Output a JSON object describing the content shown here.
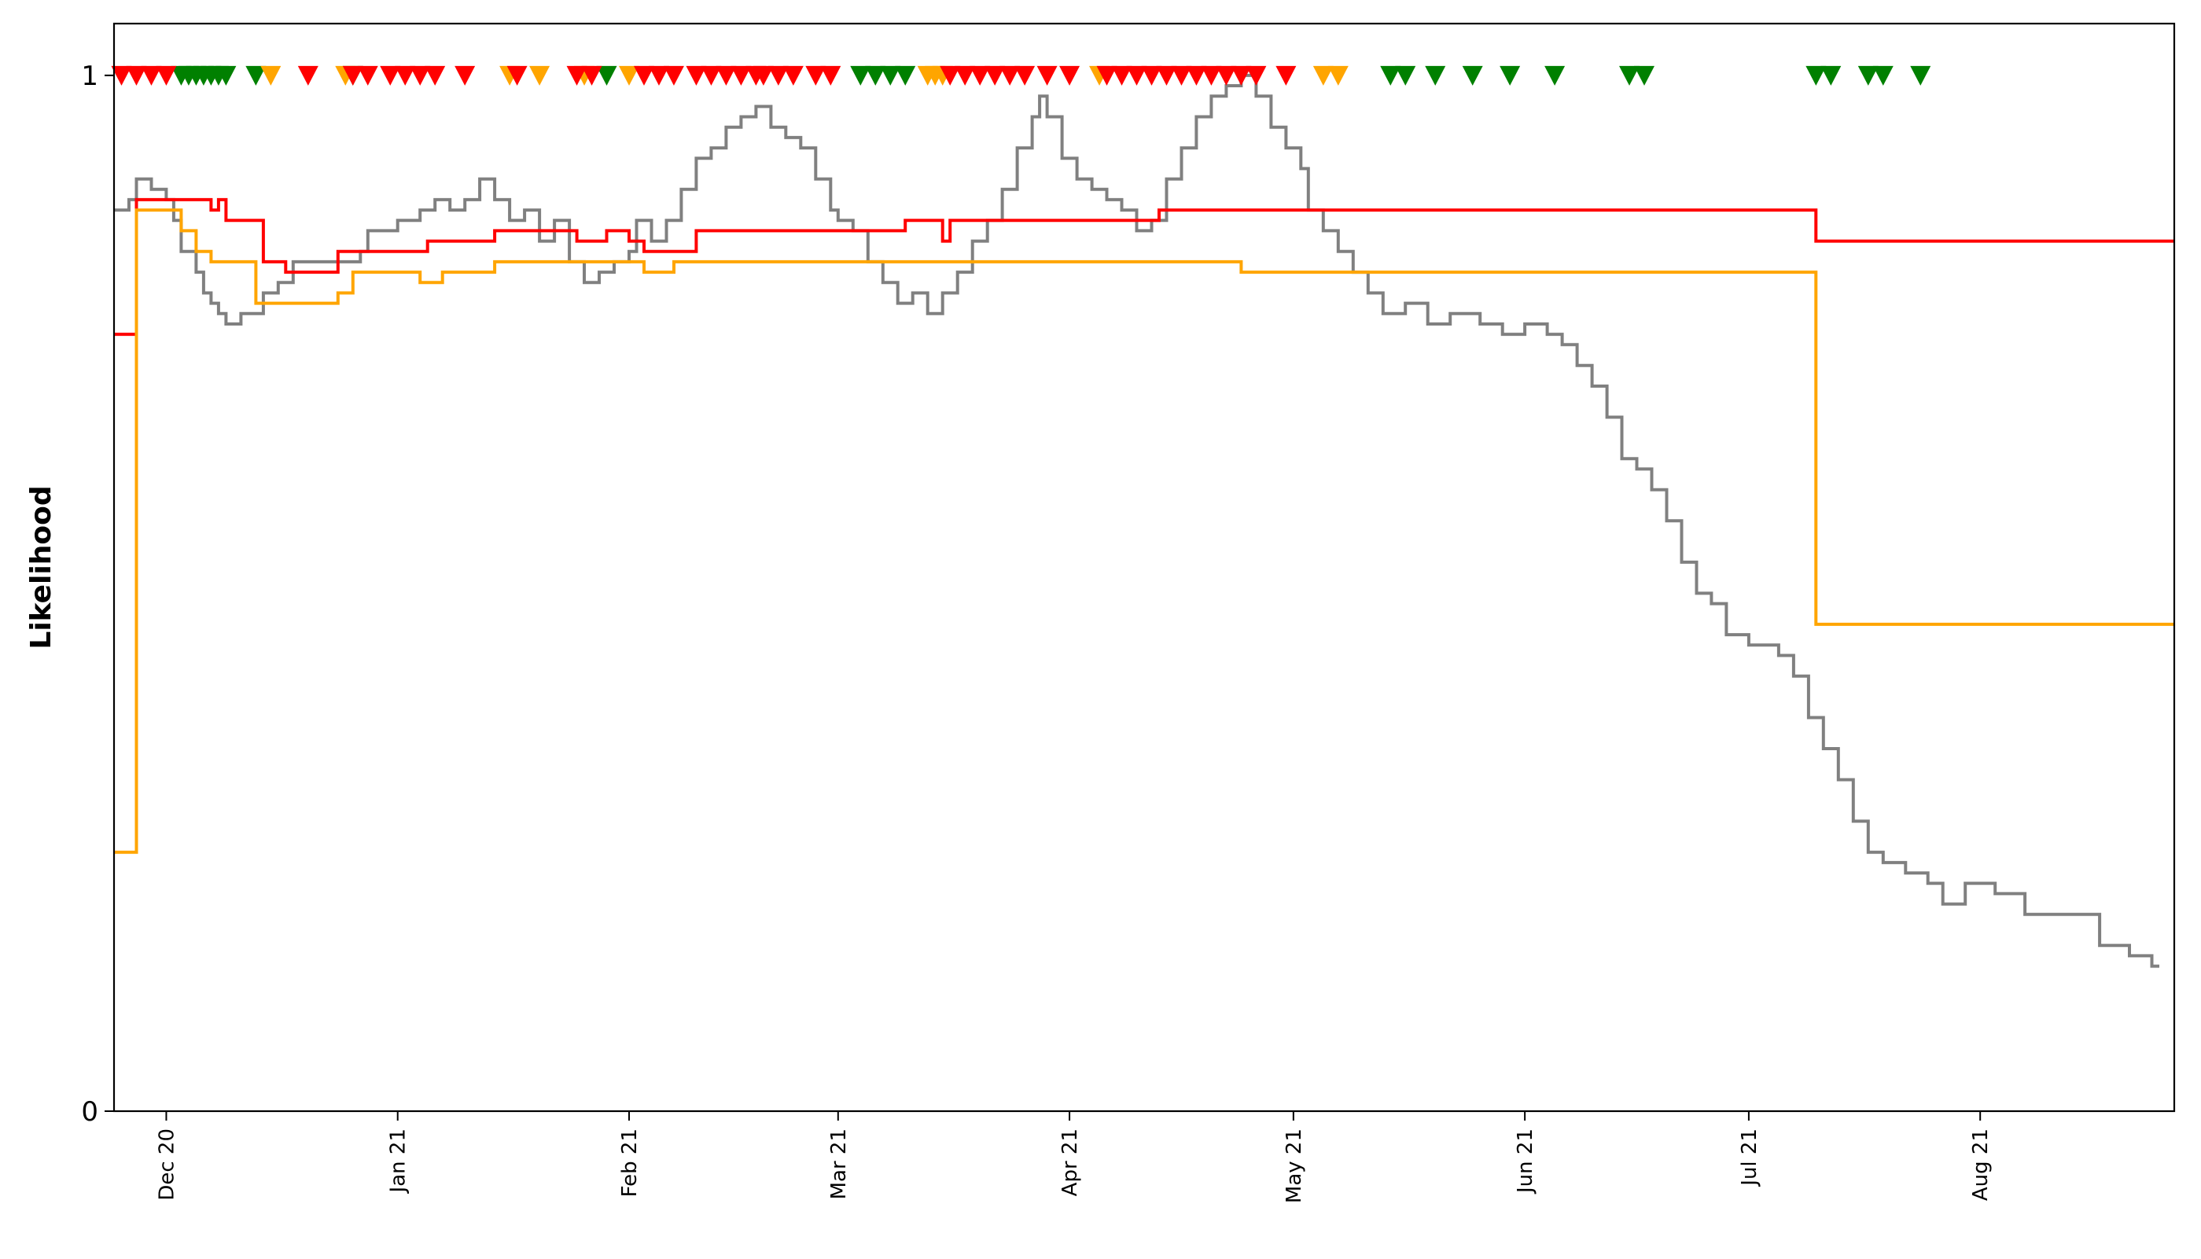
{
  "chart_data": {
    "type": "line",
    "title": "",
    "xlabel": "",
    "ylabel": "Likelihood",
    "xlim": [
      "2020-11-24",
      "2021-08-27"
    ],
    "ylim": [
      0,
      1.05
    ],
    "grid": false,
    "legend": "none",
    "x_ticks": [
      {
        "date": "2020-12-01",
        "label": "Dec 20"
      },
      {
        "date": "2021-01-01",
        "label": "Jan 21"
      },
      {
        "date": "2021-02-01",
        "label": "Feb 21"
      },
      {
        "date": "2021-03-01",
        "label": "Mar 21"
      },
      {
        "date": "2021-04-01",
        "label": "Apr 21"
      },
      {
        "date": "2021-05-01",
        "label": "May 21"
      },
      {
        "date": "2021-06-01",
        "label": "Jun 21"
      },
      {
        "date": "2021-07-01",
        "label": "Jul 21"
      },
      {
        "date": "2021-08-01",
        "label": "Aug 21"
      }
    ],
    "y_ticks": [
      {
        "value": 0,
        "label": "0"
      },
      {
        "value": 1,
        "label": "1"
      }
    ],
    "series": [
      {
        "color": "#808080",
        "step": true,
        "points": [
          [
            "2020-11-24",
            0.87
          ],
          [
            "2020-11-26",
            0.88
          ],
          [
            "2020-11-27",
            0.9
          ],
          [
            "2020-11-29",
            0.89
          ],
          [
            "2020-12-01",
            0.88
          ],
          [
            "2020-12-02",
            0.86
          ],
          [
            "2020-12-03",
            0.83
          ],
          [
            "2020-12-05",
            0.81
          ],
          [
            "2020-12-06",
            0.79
          ],
          [
            "2020-12-07",
            0.78
          ],
          [
            "2020-12-08",
            0.77
          ],
          [
            "2020-12-09",
            0.76
          ],
          [
            "2020-12-11",
            0.77
          ],
          [
            "2020-12-13",
            0.77
          ],
          [
            "2020-12-14",
            0.79
          ],
          [
            "2020-12-16",
            0.8
          ],
          [
            "2020-12-18",
            0.82
          ],
          [
            "2020-12-25",
            0.82
          ],
          [
            "2020-12-27",
            0.83
          ],
          [
            "2020-12-28",
            0.85
          ],
          [
            "2021-01-01",
            0.86
          ],
          [
            "2021-01-04",
            0.87
          ],
          [
            "2021-01-06",
            0.88
          ],
          [
            "2021-01-08",
            0.87
          ],
          [
            "2021-01-10",
            0.88
          ],
          [
            "2021-01-12",
            0.9
          ],
          [
            "2021-01-14",
            0.88
          ],
          [
            "2021-01-16",
            0.86
          ],
          [
            "2021-01-18",
            0.87
          ],
          [
            "2021-01-20",
            0.84
          ],
          [
            "2021-01-22",
            0.86
          ],
          [
            "2021-01-24",
            0.82
          ],
          [
            "2021-01-26",
            0.8
          ],
          [
            "2021-01-28",
            0.81
          ],
          [
            "2021-01-30",
            0.82
          ],
          [
            "2021-02-01",
            0.83
          ],
          [
            "2021-02-02",
            0.86
          ],
          [
            "2021-02-04",
            0.84
          ],
          [
            "2021-02-06",
            0.86
          ],
          [
            "2021-02-08",
            0.89
          ],
          [
            "2021-02-10",
            0.92
          ],
          [
            "2021-02-12",
            0.93
          ],
          [
            "2021-02-14",
            0.95
          ],
          [
            "2021-02-16",
            0.96
          ],
          [
            "2021-02-18",
            0.97
          ],
          [
            "2021-02-20",
            0.95
          ],
          [
            "2021-02-22",
            0.94
          ],
          [
            "2021-02-24",
            0.93
          ],
          [
            "2021-02-26",
            0.9
          ],
          [
            "2021-02-28",
            0.87
          ],
          [
            "2021-03-01",
            0.86
          ],
          [
            "2021-03-03",
            0.85
          ],
          [
            "2021-03-05",
            0.82
          ],
          [
            "2021-03-07",
            0.8
          ],
          [
            "2021-03-09",
            0.78
          ],
          [
            "2021-03-11",
            0.79
          ],
          [
            "2021-03-13",
            0.77
          ],
          [
            "2021-03-15",
            0.79
          ],
          [
            "2021-03-17",
            0.81
          ],
          [
            "2021-03-19",
            0.84
          ],
          [
            "2021-03-21",
            0.86
          ],
          [
            "2021-03-23",
            0.89
          ],
          [
            "2021-03-25",
            0.93
          ],
          [
            "2021-03-27",
            0.96
          ],
          [
            "2021-03-28",
            0.98
          ],
          [
            "2021-03-29",
            0.96
          ],
          [
            "2021-03-31",
            0.92
          ],
          [
            "2021-04-02",
            0.9
          ],
          [
            "2021-04-04",
            0.89
          ],
          [
            "2021-04-06",
            0.88
          ],
          [
            "2021-04-08",
            0.87
          ],
          [
            "2021-04-10",
            0.85
          ],
          [
            "2021-04-12",
            0.86
          ],
          [
            "2021-04-14",
            0.9
          ],
          [
            "2021-04-16",
            0.93
          ],
          [
            "2021-04-18",
            0.96
          ],
          [
            "2021-04-20",
            0.98
          ],
          [
            "2021-04-22",
            0.99
          ],
          [
            "2021-04-24",
            1.0
          ],
          [
            "2021-04-26",
            0.98
          ],
          [
            "2021-04-28",
            0.95
          ],
          [
            "2021-04-30",
            0.93
          ],
          [
            "2021-05-02",
            0.91
          ],
          [
            "2021-05-03",
            0.87
          ],
          [
            "2021-05-05",
            0.85
          ],
          [
            "2021-05-07",
            0.83
          ],
          [
            "2021-05-09",
            0.81
          ],
          [
            "2021-05-11",
            0.79
          ],
          [
            "2021-05-13",
            0.77
          ],
          [
            "2021-05-16",
            0.78
          ],
          [
            "2021-05-19",
            0.76
          ],
          [
            "2021-05-22",
            0.77
          ],
          [
            "2021-05-26",
            0.76
          ],
          [
            "2021-05-29",
            0.75
          ],
          [
            "2021-06-01",
            0.76
          ],
          [
            "2021-06-04",
            0.75
          ],
          [
            "2021-06-06",
            0.74
          ],
          [
            "2021-06-08",
            0.72
          ],
          [
            "2021-06-10",
            0.7
          ],
          [
            "2021-06-12",
            0.67
          ],
          [
            "2021-06-14",
            0.63
          ],
          [
            "2021-06-16",
            0.62
          ],
          [
            "2021-06-18",
            0.6
          ],
          [
            "2021-06-20",
            0.57
          ],
          [
            "2021-06-22",
            0.53
          ],
          [
            "2021-06-24",
            0.5
          ],
          [
            "2021-06-26",
            0.49
          ],
          [
            "2021-06-28",
            0.46
          ],
          [
            "2021-07-01",
            0.45
          ],
          [
            "2021-07-05",
            0.44
          ],
          [
            "2021-07-07",
            0.42
          ],
          [
            "2021-07-09",
            0.38
          ],
          [
            "2021-07-11",
            0.35
          ],
          [
            "2021-07-13",
            0.32
          ],
          [
            "2021-07-15",
            0.28
          ],
          [
            "2021-07-17",
            0.25
          ],
          [
            "2021-07-19",
            0.24
          ],
          [
            "2021-07-22",
            0.23
          ],
          [
            "2021-07-25",
            0.22
          ],
          [
            "2021-07-27",
            0.2
          ],
          [
            "2021-07-30",
            0.22
          ],
          [
            "2021-08-03",
            0.21
          ],
          [
            "2021-08-07",
            0.19
          ],
          [
            "2021-08-13",
            0.19
          ],
          [
            "2021-08-17",
            0.16
          ],
          [
            "2021-08-21",
            0.15
          ],
          [
            "2021-08-24",
            0.14
          ],
          [
            "2021-08-25",
            0.14
          ]
        ]
      },
      {
        "color": "#ff0000",
        "step": true,
        "points": [
          [
            "2020-11-24",
            0.75
          ],
          [
            "2020-11-27",
            0.88
          ],
          [
            "2020-12-07",
            0.87
          ],
          [
            "2020-12-08",
            0.88
          ],
          [
            "2020-12-09",
            0.86
          ],
          [
            "2020-12-14",
            0.82
          ],
          [
            "2020-12-17",
            0.81
          ],
          [
            "2020-12-24",
            0.83
          ],
          [
            "2021-01-02",
            0.83
          ],
          [
            "2021-01-05",
            0.84
          ],
          [
            "2021-01-14",
            0.85
          ],
          [
            "2021-01-25",
            0.84
          ],
          [
            "2021-01-29",
            0.85
          ],
          [
            "2021-02-01",
            0.84
          ],
          [
            "2021-02-03",
            0.83
          ],
          [
            "2021-02-10",
            0.85
          ],
          [
            "2021-03-10",
            0.86
          ],
          [
            "2021-03-15",
            0.84
          ],
          [
            "2021-03-16",
            0.86
          ],
          [
            "2021-03-18",
            0.86
          ],
          [
            "2021-04-13",
            0.87
          ],
          [
            "2021-07-10",
            0.84
          ],
          [
            "2021-08-27",
            0.84
          ]
        ]
      },
      {
        "color": "#ffa500",
        "step": true,
        "points": [
          [
            "2020-11-24",
            0.25
          ],
          [
            "2020-11-27",
            0.87
          ],
          [
            "2020-12-03",
            0.85
          ],
          [
            "2020-12-05",
            0.83
          ],
          [
            "2020-12-07",
            0.82
          ],
          [
            "2020-12-13",
            0.78
          ],
          [
            "2020-12-24",
            0.79
          ],
          [
            "2020-12-26",
            0.81
          ],
          [
            "2021-01-04",
            0.8
          ],
          [
            "2021-01-07",
            0.81
          ],
          [
            "2021-01-11",
            0.81
          ],
          [
            "2021-01-14",
            0.82
          ],
          [
            "2021-02-01",
            0.82
          ],
          [
            "2021-02-03",
            0.81
          ],
          [
            "2021-02-07",
            0.82
          ],
          [
            "2021-03-18",
            0.82
          ],
          [
            "2021-04-01",
            0.82
          ],
          [
            "2021-04-24",
            0.81
          ],
          [
            "2021-07-10",
            0.47
          ],
          [
            "2021-08-27",
            0.47
          ]
        ]
      }
    ],
    "markers": {
      "symbol": "triangle-down",
      "y": 1,
      "groups": [
        {
          "color": "#008000",
          "dates": [
            "2020-12-03",
            "2020-12-04",
            "2020-12-05",
            "2020-12-06",
            "2020-12-07",
            "2020-12-08",
            "2020-12-09",
            "2020-12-13",
            "2020-12-26",
            "2021-01-29",
            "2021-03-04",
            "2021-03-06",
            "2021-03-08",
            "2021-03-10",
            "2021-05-14",
            "2021-05-16",
            "2021-05-20",
            "2021-05-25",
            "2021-05-30",
            "2021-06-05",
            "2021-06-15",
            "2021-06-17",
            "2021-07-10",
            "2021-07-12",
            "2021-07-17",
            "2021-07-19",
            "2021-07-24"
          ]
        },
        {
          "color": "#ffa500",
          "dates": [
            "2020-12-15",
            "2020-12-25",
            "2021-01-16",
            "2021-01-20",
            "2021-01-26",
            "2021-02-01",
            "2021-03-13",
            "2021-03-14",
            "2021-03-15",
            "2021-04-05",
            "2021-05-05",
            "2021-05-07"
          ]
        },
        {
          "color": "#ff0000",
          "dates": [
            "2020-11-25",
            "2020-11-27",
            "2020-11-29",
            "2020-12-01",
            "2020-12-20",
            "2020-12-26",
            "2020-12-28",
            "2020-12-31",
            "2021-01-02",
            "2021-01-04",
            "2021-01-06",
            "2021-01-10",
            "2021-01-17",
            "2021-01-25",
            "2021-01-27",
            "2021-02-03",
            "2021-02-05",
            "2021-02-07",
            "2021-02-10",
            "2021-02-12",
            "2021-02-14",
            "2021-02-16",
            "2021-02-18",
            "2021-02-19",
            "2021-02-21",
            "2021-02-23",
            "2021-02-26",
            "2021-02-28",
            "2021-03-16",
            "2021-03-18",
            "2021-03-20",
            "2021-03-22",
            "2021-03-24",
            "2021-03-26",
            "2021-03-29",
            "2021-04-01",
            "2021-04-06",
            "2021-04-08",
            "2021-04-10",
            "2021-04-12",
            "2021-04-14",
            "2021-04-16",
            "2021-04-18",
            "2021-04-20",
            "2021-04-22",
            "2021-04-24",
            "2021-04-26",
            "2021-04-30"
          ]
        }
      ]
    }
  }
}
